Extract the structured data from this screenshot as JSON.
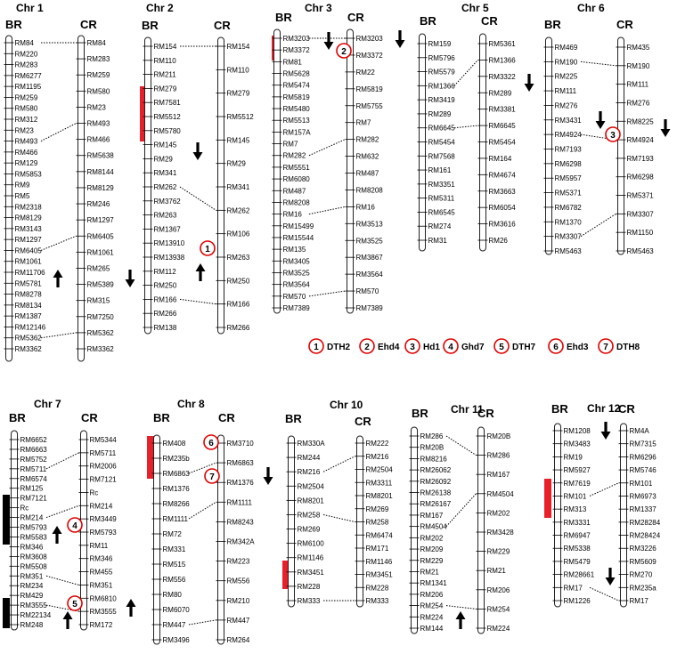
{
  "labels": {
    "br": "BR",
    "cr": "CR"
  },
  "legend": [
    {
      "num": "1",
      "gene": "DTH2"
    },
    {
      "num": "2",
      "gene": "Ehd4"
    },
    {
      "num": "3",
      "gene": "Hd1"
    },
    {
      "num": "4",
      "gene": "Ghd7"
    },
    {
      "num": "5",
      "gene": "DTH7"
    },
    {
      "num": "6",
      "gene": "Ehd3"
    },
    {
      "num": "7",
      "gene": "DTH8"
    }
  ],
  "colors": {
    "region_red": "#e8202a",
    "region_black": "#000000",
    "circle": "#e00000"
  },
  "icons": {
    "up": "arrow-up-icon",
    "down": "arrow-down-icon"
  },
  "panels": [
    {
      "title": "Chr 1",
      "br": [
        "RM84",
        "RM220",
        "RM283",
        "RM6277",
        "RM1195",
        "RM259",
        "RM580",
        "RM312",
        "RM23",
        "RM493",
        "RM466",
        "RM129",
        "RM5853",
        "RM9",
        "RM5",
        "RM2318",
        "RM8129",
        "RM3143",
        "RM1297",
        "RM6405",
        "RM1061",
        "RM11706",
        "RM5781",
        "RM8278",
        "RM8134",
        "RM1387",
        "RM12146",
        "RM5362",
        "RM3362"
      ],
      "cr": [
        "RM84",
        "RM283",
        "RM259",
        "RM580",
        "RM23",
        "RM493",
        "RM466",
        "RM5638",
        "RM8144",
        "RM8129",
        "RM246",
        "RM1297",
        "RM6405",
        "RM1061",
        "RM265",
        "RM5389",
        "RM315",
        "RM7250",
        "RM5362",
        "RM3362"
      ],
      "links": [
        [
          "RM84",
          "RM84"
        ],
        [
          "RM493",
          "RM493"
        ],
        [
          "RM6405",
          "RM6405"
        ],
        [
          "RM5362",
          "RM5362"
        ]
      ],
      "gene": null,
      "arrows": [
        "brUp",
        "crDown"
      ]
    },
    {
      "title": "Chr 2",
      "br": [
        "RM154",
        "RM110",
        "RM211",
        "RM279",
        "RM7581",
        "RM5512",
        "RM5780",
        "RM145",
        "RM29",
        "RM341",
        "RM262",
        "RM3762",
        "RM263",
        "RM1367",
        "RM13910",
        "RM13938",
        "RM112",
        "RM250",
        "RM166",
        "RM266",
        "RM138"
      ],
      "cr": [
        "RM154",
        "RM110",
        "RM279",
        "RM5512",
        "RM145",
        "RM29",
        "RM341",
        "RM262",
        "RM106",
        "RM263",
        "RM250",
        "RM166",
        "RM266"
      ],
      "links": [
        [
          "RM154",
          "RM154"
        ],
        [
          "RM262",
          "RM262"
        ],
        [
          "RM166",
          "RM166"
        ]
      ],
      "gene": "1",
      "arrows": [
        "brDown",
        "brUp"
      ]
    },
    {
      "title": "Chr 3",
      "br": [
        "RM3203",
        "RM3372",
        "RM81",
        "RM5628",
        "RM5474",
        "RM5819",
        "RM5480",
        "RM5513",
        "RM157A",
        "RM7",
        "RM282",
        "RM5551",
        "RM6080",
        "RM487",
        "RM8208",
        "RM16",
        "RM15499",
        "RM15544",
        "RM135",
        "RM3405",
        "RM3525",
        "RM3564",
        "RM570",
        "RM7389"
      ],
      "cr": [
        "RM3203",
        "RM3372",
        "RM22",
        "RM5819",
        "RM5755",
        "RM7",
        "RM282",
        "RM632",
        "RM487",
        "RM8208",
        "RM16",
        "RM3513",
        "RM3525",
        "RM3867",
        "RM3564",
        "RM570",
        "RM7389"
      ],
      "links": [
        [
          "RM3203",
          "RM3203"
        ],
        [
          "RM282",
          "RM282"
        ],
        [
          "RM16",
          "RM16"
        ],
        [
          "RM570",
          "RM570"
        ]
      ],
      "gene": "2",
      "arrows": [
        "brDown",
        "crDown"
      ]
    },
    {
      "title": "Chr 5",
      "br": [
        "RM159",
        "RM5796",
        "RM5579",
        "RM1366",
        "RM3419",
        "RM289",
        "RM6645",
        "RM5454",
        "RM7568",
        "RM161",
        "RM3351",
        "RM5311",
        "RM6545",
        "RM274",
        "RM31"
      ],
      "cr": [
        "RM5361",
        "RM1366",
        "RM3322",
        "RM289",
        "RM3381",
        "RM6645",
        "RM5454",
        "RM164",
        "RM4674",
        "RM3663",
        "RM6054",
        "RM3616",
        "RM26"
      ],
      "links": [
        [
          "RM1366",
          "RM1366"
        ],
        [
          "RM6645",
          "RM6645"
        ]
      ],
      "gene": null,
      "arrows": [
        "crDown"
      ]
    },
    {
      "title": "Chr 6",
      "br": [
        "RM469",
        "RM190",
        "RM225",
        "RM111",
        "RM276",
        "RM3431",
        "RM4924",
        "RM7193",
        "RM6298",
        "RM5957",
        "RM5371",
        "RM6782",
        "RM1370",
        "RM3307",
        "RM5463"
      ],
      "cr": [
        "RM435",
        "RM190",
        "RM111",
        "RM276",
        "RM8225",
        "RM4924",
        "RM7193",
        "RM6298",
        "RM5371",
        "RM3307",
        "RM1150",
        "RM5463"
      ],
      "links": [
        [
          "RM190",
          "RM190"
        ],
        [
          "RM4924",
          "RM4924"
        ],
        [
          "RM3307",
          "RM3307"
        ]
      ],
      "gene": "3",
      "arrows": [
        "brDown",
        "crDown"
      ]
    },
    {
      "title": "Chr 7",
      "br": [
        "RM6652",
        "RM6663",
        "RM5752",
        "RM5711",
        "RM6574",
        "RM125",
        "RM7121",
        "Rc",
        "RM214",
        "RM5793",
        "RM5583",
        "RM346",
        "RM3608",
        "RM5508",
        "RM351",
        "RM234",
        "RM429",
        "RM3555",
        "RM22134",
        "RM248"
      ],
      "cr": [
        "RM5344",
        "RM5711",
        "RM2006",
        "RM7121",
        "Rc",
        "RM214",
        "RM3449",
        "RM5793",
        "RM11",
        "RM346",
        "RM455",
        "RM351",
        "RM6810",
        "RM3555",
        "RM172"
      ],
      "links": [
        [
          "RM5711",
          "RM5711"
        ],
        [
          "RM214",
          "RM214"
        ],
        [
          "RM351",
          "RM351"
        ],
        [
          "RM3555",
          "RM3555"
        ]
      ],
      "gene": "4",
      "arrows": [
        "brUp",
        "brUp",
        "crUp"
      ]
    },
    {
      "title": "Chr 8",
      "br": [
        "RM408",
        "RM235b",
        "RM6863",
        "RM1376",
        "RM8266",
        "RM1111",
        "RM72",
        "RM331",
        "RM515",
        "RM556",
        "RM80",
        "RM6070",
        "RM447",
        "RM3496"
      ],
      "cr": [
        "RM3710",
        "RM6863",
        "RM1376",
        "RM1111",
        "RM8243",
        "RM342A",
        "RM223",
        "RM556",
        "RM210",
        "RM447",
        "RM264"
      ],
      "links": [
        [
          "RM6863",
          "RM6863"
        ],
        [
          "RM1111",
          "RM1111"
        ],
        [
          "RM447",
          "RM447"
        ]
      ],
      "gene": "6",
      "arrows": [
        "crDown"
      ]
    },
    {
      "title": "Chr 10",
      "br": [
        "RM330A",
        "RM244",
        "RM216",
        "RM2504",
        "RM8201",
        "RM258",
        "RM269",
        "RM6100",
        "RM1146",
        "RM3451",
        "RM228",
        "RM333"
      ],
      "cr": [
        "RM222",
        "RM216",
        "RM2504",
        "RM3311",
        "RM8201",
        "RM269",
        "RM258",
        "RM6474",
        "RM171",
        "RM1146",
        "RM3451",
        "RM228",
        "RM333"
      ],
      "links": [
        [
          "RM216",
          "RM216"
        ],
        [
          "RM258",
          "RM258"
        ],
        [
          "RM333",
          "RM333"
        ]
      ],
      "gene": null,
      "arrows": []
    },
    {
      "title": "Chr 11",
      "br": [
        "RM286",
        "RM20B",
        "RM8216",
        "RM26062",
        "RM26092",
        "RM26138",
        "RM26167",
        "RM167",
        "RM4504",
        "RM202",
        "RM209",
        "RM229",
        "RM21",
        "RM1341",
        "RM206",
        "RM254",
        "RM224",
        "RM144"
      ],
      "cr": [
        "RM20B",
        "RM286",
        "RM167",
        "RM4504",
        "RM202",
        "RM3428",
        "RM229",
        "RM21",
        "RM206",
        "RM254",
        "RM224"
      ],
      "links": [
        [
          "RM286",
          "RM286"
        ],
        [
          "RM4504",
          "RM4504"
        ],
        [
          "RM254",
          "RM254"
        ]
      ],
      "gene": null,
      "arrows": [
        "brUp"
      ]
    },
    {
      "title": "Chr 12",
      "br": [
        "RM1208",
        "RM3483",
        "RM19",
        "RM5927",
        "RM7619",
        "RM101",
        "RM313",
        "RM3331",
        "RM6947",
        "RM5338",
        "RM5479",
        "RM28661",
        "RM17",
        "RM1226"
      ],
      "cr": [
        "RM4A",
        "RM7315",
        "RM6296",
        "RM5746",
        "RM101",
        "RM6973",
        "RM1337",
        "RM28284",
        "RM28424",
        "RM3226",
        "RM5609",
        "RM270",
        "RM235a",
        "RM17"
      ],
      "links": [
        [
          "RM101",
          "RM101"
        ],
        [
          "RM17",
          "RM17"
        ]
      ],
      "gene": null,
      "arrows": [
        "brDown",
        "brDown"
      ]
    }
  ]
}
